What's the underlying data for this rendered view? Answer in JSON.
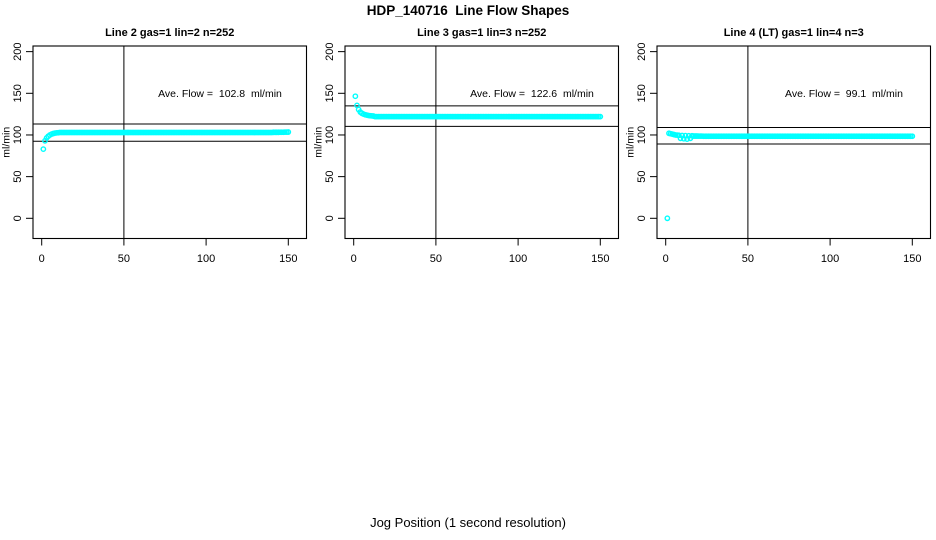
{
  "title": "HDP_140716  Line Flow Shapes",
  "xlabel": "Jog Position (1 second resolution)",
  "colors": {
    "points": "#00FFFF",
    "axis": "#000000",
    "background": "#FFFFFF"
  },
  "chart_data": [
    {
      "type": "scatter",
      "title": "Line 2 gas=1 lin=2 n=252",
      "ylabel": "ml/min",
      "annotation": "Ave. Flow =  102.8  ml/min",
      "ave_flow": 102.8,
      "n": 252,
      "x_ticks": [
        0,
        50,
        100,
        150
      ],
      "y_ticks": [
        0,
        50,
        100,
        150,
        200
      ],
      "xlim": [
        0,
        155
      ],
      "ylim": [
        0,
        210
      ],
      "grid": false,
      "vline_x": 50,
      "hlines": [
        113.1,
        92.5
      ],
      "x_start": 1,
      "x_step": 1,
      "y": [
        83,
        93,
        96.5,
        98.5,
        100,
        101,
        101.7,
        102.2,
        102.5,
        102.7,
        103,
        103,
        103,
        103,
        103,
        103,
        103,
        103,
        103,
        103,
        103,
        103,
        103,
        103,
        103,
        103,
        103,
        103,
        103,
        103,
        103,
        103,
        103,
        103,
        103,
        103,
        103,
        103,
        103,
        103,
        103,
        103,
        103,
        103,
        103,
        103,
        103,
        103,
        103,
        103,
        103,
        103,
        103,
        103,
        103,
        103,
        103,
        103,
        103,
        103,
        103,
        103,
        103,
        103,
        103,
        103,
        103,
        103,
        103,
        103,
        103,
        103,
        103,
        103,
        103,
        103,
        103,
        103,
        103,
        103,
        103,
        103,
        103,
        103,
        103,
        103,
        103,
        103,
        103,
        103,
        103,
        103,
        103,
        103,
        103,
        103,
        103,
        103,
        103,
        103,
        103,
        103,
        103,
        103,
        103,
        103,
        103,
        103,
        103,
        103,
        103,
        103,
        103,
        103,
        103,
        103,
        103,
        103,
        103,
        103,
        103,
        103,
        103,
        103,
        103,
        103,
        103,
        103,
        103,
        103,
        103,
        103,
        103,
        103,
        103,
        103,
        103,
        103,
        103,
        103,
        103.2,
        103.2,
        103.2,
        103.2,
        103.3,
        103.3,
        103.3,
        103.4,
        103.4,
        103.5
      ]
    },
    {
      "type": "scatter",
      "title": "Line 3 gas=1 lin=3 n=252",
      "ylabel": "ml/min",
      "annotation": "Ave. Flow =  122.6  ml/min",
      "ave_flow": 122.6,
      "n": 252,
      "x_ticks": [
        0,
        50,
        100,
        150
      ],
      "y_ticks": [
        0,
        50,
        100,
        150,
        200
      ],
      "xlim": [
        0,
        155
      ],
      "ylim": [
        0,
        210
      ],
      "grid": false,
      "vline_x": 50,
      "hlines": [
        134.9,
        110.3
      ],
      "x_start": 1,
      "x_step": 1,
      "y": [
        146.5,
        135.5,
        130.5,
        127.5,
        126,
        125,
        124.3,
        123.8,
        123.4,
        123.1,
        122.9,
        122.7,
        122,
        122,
        122,
        122,
        122,
        122,
        122,
        122,
        122,
        122,
        122,
        122,
        122,
        122,
        122,
        122,
        122,
        122,
        122,
        122,
        122,
        122,
        122,
        122,
        122,
        122,
        122,
        122,
        122,
        122,
        122,
        122,
        122,
        122,
        122,
        122,
        122,
        122,
        122,
        122,
        122,
        122,
        122,
        122,
        122,
        122,
        122,
        122,
        122,
        122,
        122,
        122,
        122,
        122,
        122,
        122,
        122,
        122,
        122,
        122,
        122,
        122,
        122,
        122,
        122,
        122,
        122,
        122,
        122,
        122,
        122,
        122,
        122,
        122,
        122,
        122,
        122,
        122,
        122,
        122,
        122,
        122,
        122,
        122,
        122,
        122,
        122,
        122,
        122,
        122,
        122,
        122,
        122,
        122,
        122,
        122,
        122,
        122,
        122,
        122,
        122,
        122,
        122,
        122,
        122,
        122,
        122,
        122,
        122,
        122,
        122,
        122,
        122,
        122,
        122,
        122,
        122,
        122,
        122,
        122,
        122,
        122,
        122,
        122,
        122,
        122,
        122,
        122,
        122,
        122,
        122,
        122,
        122,
        122,
        122,
        122,
        122,
        122
      ]
    },
    {
      "type": "scatter",
      "title": "Line 4 (LT) gas=1 lin=4 n=3",
      "ylabel": "ml/min",
      "annotation": "Ave. Flow =  99.1  ml/min",
      "ave_flow": 99.1,
      "n": 3,
      "x_ticks": [
        0,
        50,
        100,
        150
      ],
      "y_ticks": [
        0,
        50,
        100,
        150,
        200
      ],
      "xlim": [
        0,
        155
      ],
      "ylim": [
        0,
        210
      ],
      "grid": false,
      "vline_x": 50,
      "hlines": [
        109.0,
        89.2
      ],
      "x_start": 1,
      "x_step": 1,
      "y": [
        0,
        102,
        101.5,
        101,
        100.5,
        100,
        99.8,
        99.6,
        96,
        99.3,
        95.5,
        99.2,
        95,
        99,
        96,
        99,
        98.7,
        98.7,
        98.7,
        98.6,
        98.6,
        98.6,
        98.5,
        98.5,
        98.5,
        98.5,
        98.5,
        98.5,
        98.5,
        98.5,
        98.5,
        98.5,
        98.5,
        98.5,
        98.5,
        98.5,
        98.5,
        98.5,
        98.5,
        98.5,
        98.5,
        98.5,
        98.5,
        98.5,
        98.5,
        98.5,
        98.5,
        98.5,
        98.5,
        98.5,
        98.5,
        98.5,
        98.5,
        98.5,
        98.5,
        98.5,
        98.5,
        98.5,
        98.5,
        98.5,
        98.5,
        98.5,
        98.5,
        98.5,
        98.5,
        98.5,
        98.5,
        98.5,
        98.5,
        98.5,
        98.5,
        98.5,
        98.5,
        98.5,
        98.5,
        98.5,
        98.5,
        98.5,
        98.5,
        98.5,
        98.5,
        98.5,
        98.5,
        98.5,
        98.5,
        98.5,
        98.5,
        98.5,
        98.5,
        98.5,
        98.5,
        98.5,
        98.5,
        98.5,
        98.5,
        98.5,
        98.5,
        98.5,
        98.5,
        98.5,
        98.5,
        98.5,
        98.5,
        98.5,
        98.5,
        98.5,
        98.5,
        98.5,
        98.5,
        98.5,
        98.5,
        98.5,
        98.5,
        98.5,
        98.5,
        98.5,
        98.5,
        98.5,
        98.5,
        98.5,
        98.5,
        98.5,
        98.5,
        98.5,
        98.5,
        98.5,
        98.5,
        98.5,
        98.5,
        98.5,
        98.5,
        98.5,
        98.5,
        98.5,
        98.5,
        98.5,
        98.5,
        98.5,
        98.5,
        98.5,
        98.5,
        98.5,
        98.5,
        98.5,
        98.5,
        98.5,
        98.5,
        98.5,
        98.5,
        98.5
      ]
    }
  ]
}
